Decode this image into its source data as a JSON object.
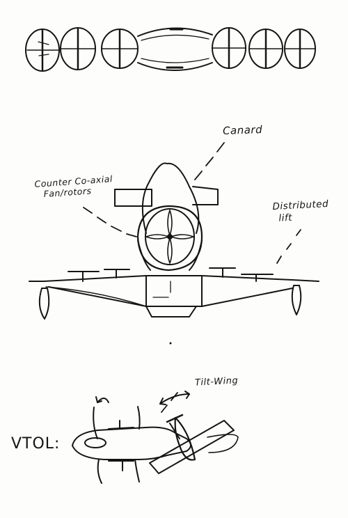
{
  "labels": {
    "canard": "Canard",
    "counter_line1": "Counter Co-axial",
    "counter_line2": "Fan/rotors",
    "distributed_line1": "Distributed",
    "distributed_line2": "lift",
    "tilt_wing": "Tilt-Wing",
    "vtol": "VTOL:"
  },
  "colors": {
    "ink": "#141414",
    "paper": "#fdfdfb"
  }
}
